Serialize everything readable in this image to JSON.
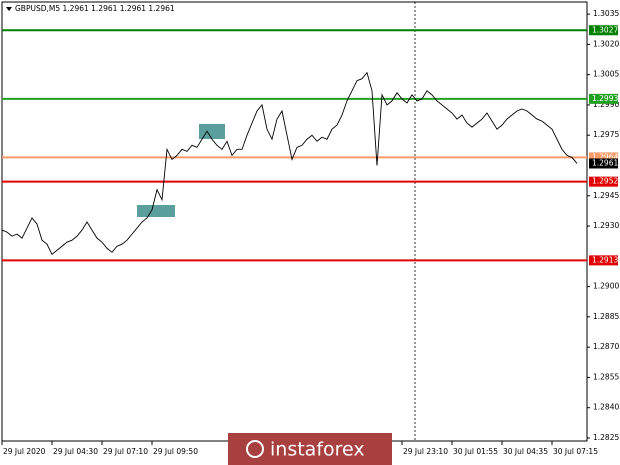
{
  "chart_data": {
    "type": "line",
    "title": "GBPUSD,M5  1.2961 1.2961 1.2961 1.2961",
    "color": "#000000",
    "values": [
      1.2928,
      1.2927,
      1.2925,
      1.2926,
      1.2924,
      1.2929,
      1.2934,
      1.2931,
      1.2923,
      1.2921,
      1.2916,
      1.2918,
      1.292,
      1.2922,
      1.2923,
      1.2925,
      1.2928,
      1.2932,
      1.2928,
      1.2924,
      1.2922,
      1.2919,
      1.2917,
      1.292,
      1.2921,
      1.2923,
      1.2926,
      1.2929,
      1.2932,
      1.2934,
      1.2938,
      1.2948,
      1.2943,
      1.2968,
      1.2963,
      1.2965,
      1.2968,
      1.2967,
      1.297,
      1.2969,
      1.2973,
      1.2977,
      1.2973,
      1.297,
      1.2968,
      1.2972,
      1.2965,
      1.2968,
      1.2968,
      1.2975,
      1.2981,
      1.2987,
      1.299,
      1.2978,
      1.2973,
      1.2983,
      1.2987,
      1.2975,
      1.2963,
      1.2969,
      1.297,
      1.2973,
      1.2975,
      1.2972,
      1.2974,
      1.2973,
      1.2978,
      1.298,
      1.2985,
      1.2992,
      1.2997,
      1.3002,
      1.3003,
      1.3006,
      1.2997,
      1.296,
      1.2995,
      1.299,
      1.2992,
      1.2996,
      1.2993,
      1.2991,
      1.2995,
      1.2992,
      1.2993,
      1.2997,
      1.2995,
      1.2992,
      1.299,
      1.2988,
      1.2986,
      1.2983,
      1.2985,
      1.2981,
      1.2979,
      1.2981,
      1.2983,
      1.2986,
      1.2982,
      1.2978,
      1.298,
      1.2983,
      1.2985,
      1.2987,
      1.2988,
      1.2987,
      1.2985,
      1.2983,
      1.2982,
      1.298,
      1.2978,
      1.2973,
      1.2968,
      1.2965,
      1.2964,
      1.2961
    ],
    "categories": [
      "29 Jul 2020",
      null,
      null,
      null,
      null,
      null,
      null,
      null,
      null,
      null,
      "29 Jul 04:30",
      null,
      null,
      null,
      null,
      null,
      null,
      null,
      null,
      null,
      "29 Jul 07:10",
      null,
      null,
      null,
      null,
      null,
      null,
      null,
      null,
      null,
      "29 Jul 09:50",
      null,
      null,
      null,
      null,
      null,
      null,
      null,
      null,
      null,
      null,
      null,
      null,
      null,
      null,
      null,
      null,
      null,
      null,
      null,
      null,
      null,
      null,
      null,
      null,
      null,
      null,
      null,
      null,
      null,
      null,
      null,
      null,
      null,
      null,
      null,
      null,
      null,
      null,
      null,
      null,
      null,
      null,
      null,
      null,
      null,
      null,
      null,
      null,
      null,
      "29 Jul 23:10",
      null,
      null,
      null,
      null,
      null,
      null,
      null,
      null,
      null,
      "30 Jul 01:55",
      null,
      null,
      null,
      null,
      null,
      null,
      null,
      null,
      null,
      "30 Jul 04:35",
      null,
      null,
      null,
      null,
      null,
      null,
      null,
      null,
      null,
      "30 Jul 07:15",
      null,
      null,
      null,
      null,
      null
    ],
    "ylim": [
      1.2824,
      1.3041
    ],
    "yticks": [
      1.3035,
      {
        "value": 1.302,
        "label": "1.3020"
      },
      1.3005,
      {
        "value": 1.299,
        "label": "1.2990"
      },
      1.2975,
      1.2945,
      {
        "value": 1.293,
        "label": "1.2930"
      },
      {
        "value": 1.29,
        "label": "1.2900"
      },
      1.2885,
      {
        "value": 1.287,
        "label": "1.2870"
      },
      1.2855,
      {
        "value": 1.284,
        "label": "1.2840"
      },
      1.2825
    ],
    "grid": false,
    "levels": [
      {
        "value": 1.3027,
        "color": "#008000"
      },
      {
        "value": 1.2993,
        "color": "#22a022"
      },
      {
        "value": 1.2964,
        "color": "#ff9a66"
      },
      {
        "value": 1.2952,
        "color": "#e00000"
      },
      {
        "value": 1.2913,
        "color": "#e00000"
      }
    ],
    "current_price": 1.2961,
    "watermark": "instaforex"
  }
}
